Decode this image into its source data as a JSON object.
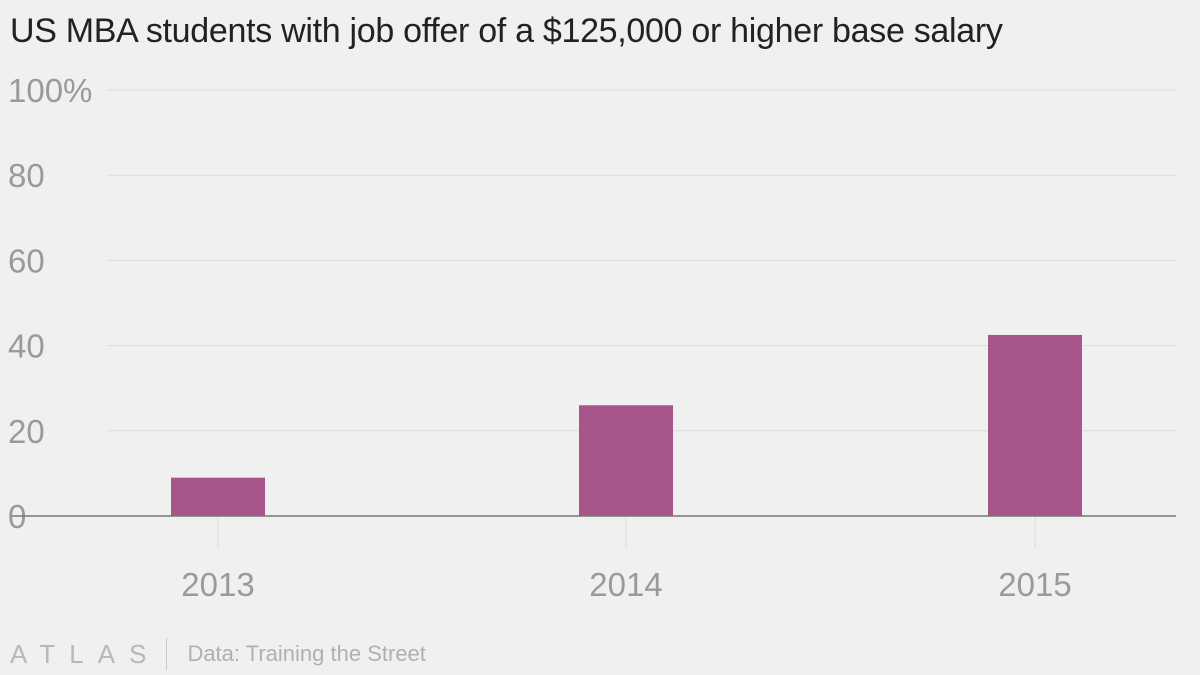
{
  "chart_data": {
    "type": "bar",
    "title": "US MBA students with job offer of a $125,000 or higher base salary",
    "categories": [
      "2013",
      "2014",
      "2015"
    ],
    "values": [
      9,
      26,
      42.5
    ],
    "ylim": [
      0,
      100
    ],
    "yticks": [
      0,
      20,
      40,
      60,
      80,
      100
    ],
    "ytick_labels": [
      "0",
      "20",
      "40",
      "60",
      "80",
      "100%"
    ],
    "xlabel": "",
    "ylabel": "",
    "grid": true,
    "bar_color": "#a8568a"
  },
  "footer": {
    "logo": "ATLAS",
    "source": "Data: Training the Street"
  }
}
